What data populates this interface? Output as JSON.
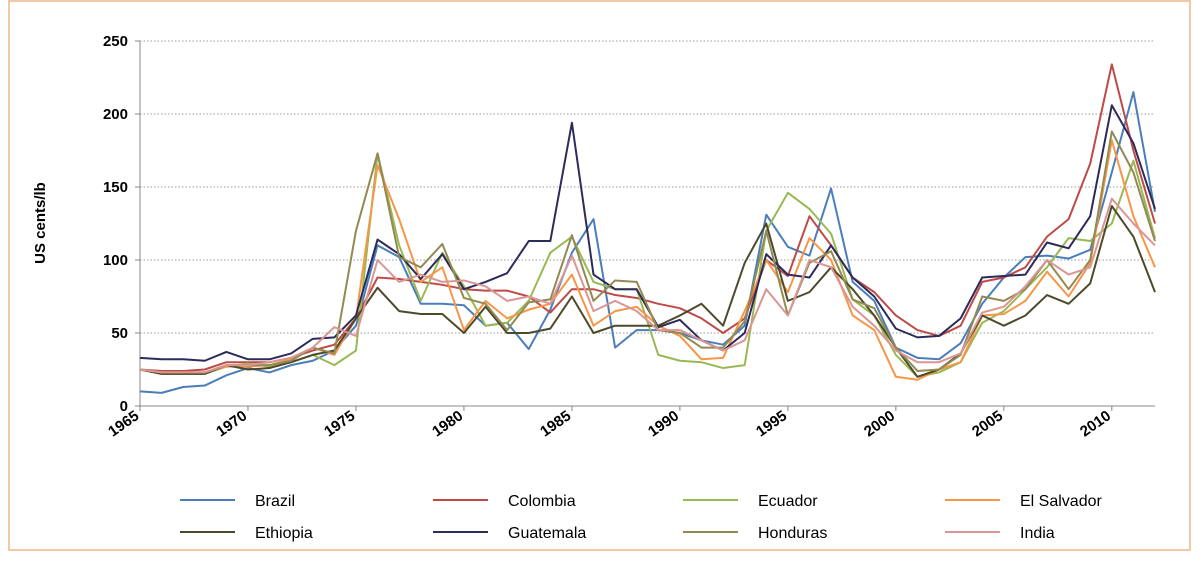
{
  "chart_data": {
    "type": "line",
    "ylabel": "US cents/lb",
    "x": [
      1965,
      1966,
      1967,
      1968,
      1969,
      1970,
      1971,
      1972,
      1973,
      1974,
      1975,
      1976,
      1977,
      1978,
      1979,
      1980,
      1981,
      1982,
      1983,
      1984,
      1985,
      1986,
      1987,
      1988,
      1989,
      1990,
      1991,
      1992,
      1993,
      1994,
      1995,
      1996,
      1997,
      1998,
      1999,
      2000,
      2001,
      2002,
      2003,
      2004,
      2005,
      2006,
      2007,
      2008,
      2009,
      2010,
      2011,
      2012
    ],
    "xlim": [
      1965,
      2012
    ],
    "xticks": [
      1965,
      1970,
      1975,
      1980,
      1985,
      1990,
      1995,
      2000,
      2005,
      2010
    ],
    "ylim": [
      0,
      250
    ],
    "yticks": [
      0,
      50,
      100,
      150,
      200,
      250
    ],
    "grid": true,
    "series": [
      {
        "name": "Brazil",
        "color": "#4a7ebb",
        "values": [
          10,
          9,
          13,
          14,
          21,
          26,
          23,
          28,
          31,
          38,
          55,
          110,
          102,
          70,
          70,
          69,
          55,
          57,
          39,
          66,
          105,
          128,
          40,
          52,
          52,
          50,
          45,
          42,
          55,
          131,
          109,
          103,
          149,
          85,
          72,
          40,
          33,
          32,
          43,
          70,
          88,
          102,
          103,
          101,
          107,
          160,
          215,
          133
        ]
      },
      {
        "name": "Colombia",
        "color": "#be4b48",
        "values": [
          25,
          24,
          24,
          25,
          30,
          30,
          30,
          33,
          38,
          42,
          60,
          88,
          87,
          85,
          83,
          80,
          79,
          79,
          75,
          64,
          80,
          80,
          76,
          74,
          70,
          67,
          60,
          50,
          60,
          100,
          89,
          130,
          110,
          88,
          78,
          62,
          52,
          48,
          55,
          85,
          88,
          95,
          116,
          128,
          166,
          234,
          175,
          125
        ]
      },
      {
        "name": "Ecuador",
        "color": "#98b954",
        "values": [
          25,
          22,
          22,
          22,
          27,
          29,
          27,
          30,
          35,
          28,
          38,
          173,
          110,
          72,
          105,
          82,
          55,
          57,
          72,
          105,
          116,
          85,
          80,
          80,
          35,
          31,
          30,
          26,
          28,
          120,
          146,
          135,
          118,
          73,
          62,
          35,
          20,
          23,
          30,
          57,
          65,
          80,
          95,
          115,
          113,
          125,
          168,
          115
        ]
      },
      {
        "name": "El Salvador",
        "color": "#f79646",
        "values": [
          25,
          23,
          23,
          23,
          27,
          27,
          28,
          32,
          40,
          35,
          60,
          165,
          128,
          85,
          95,
          52,
          72,
          60,
          66,
          70,
          90,
          55,
          65,
          68,
          55,
          48,
          32,
          33,
          65,
          100,
          78,
          115,
          100,
          62,
          52,
          20,
          18,
          25,
          30,
          62,
          63,
          72,
          92,
          75,
          98,
          182,
          130,
          95
        ]
      },
      {
        "name": "Ethiopia",
        "color": "#4d4a2c",
        "values": [
          25,
          22,
          22,
          22,
          28,
          25,
          26,
          30,
          35,
          38,
          60,
          81,
          65,
          63,
          63,
          50,
          68,
          50,
          50,
          53,
          75,
          50,
          55,
          55,
          55,
          62,
          70,
          55,
          98,
          125,
          72,
          78,
          95,
          80,
          62,
          40,
          20,
          25,
          36,
          62,
          55,
          62,
          76,
          70,
          84,
          137,
          116,
          78
        ]
      },
      {
        "name": "Guatemala",
        "color": "#2c2b5a",
        "values": [
          33,
          32,
          32,
          31,
          37,
          32,
          32,
          36,
          46,
          47,
          62,
          114,
          104,
          87,
          104,
          80,
          85,
          91,
          113,
          113,
          194,
          90,
          80,
          80,
          54,
          59,
          45,
          38,
          50,
          104,
          90,
          88,
          110,
          88,
          75,
          53,
          47,
          48,
          60,
          88,
          89,
          90,
          112,
          108,
          130,
          206,
          180,
          135
        ]
      },
      {
        "name": "Honduras",
        "color": "#938953",
        "values": [
          25,
          23,
          23,
          23,
          28,
          28,
          28,
          31,
          40,
          36,
          120,
          173,
          102,
          95,
          111,
          74,
          70,
          52,
          71,
          73,
          117,
          72,
          86,
          85,
          52,
          50,
          40,
          40,
          58,
          120,
          62,
          98,
          106,
          73,
          67,
          40,
          24,
          25,
          35,
          75,
          72,
          80,
          100,
          80,
          100,
          188,
          160,
          113
        ]
      },
      {
        "name": "India",
        "color": "#d99694",
        "values": [
          25,
          23,
          23,
          23,
          28,
          28,
          30,
          33,
          40,
          54,
          48,
          100,
          85,
          90,
          85,
          86,
          82,
          72,
          75,
          70,
          103,
          65,
          72,
          65,
          52,
          52,
          45,
          38,
          45,
          80,
          62,
          100,
          95,
          68,
          55,
          38,
          30,
          30,
          36,
          64,
          68,
          82,
          100,
          90,
          95,
          142,
          125,
          110
        ]
      }
    ]
  }
}
